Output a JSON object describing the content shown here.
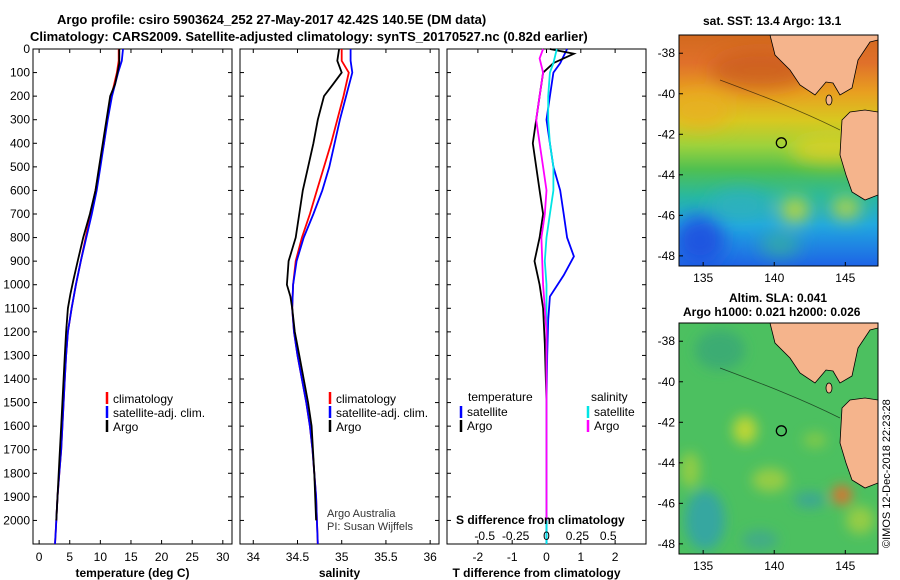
{
  "title": {
    "line1": "Argo profile: csiro 5903624_252 27-May-2017 42.42S 140.5E (DM data)",
    "line2": "Climatology: CARS2009. Satellite-adjusted climatology: synTS_20170527.nc (0.82d earlier)"
  },
  "credit": {
    "line1": "Argo Australia",
    "line2": "PI: Susan Wijffels"
  },
  "stamp": "©IMOS 12-Dec-2018 22:23:28",
  "colors": {
    "climatology": "#ff0000",
    "satellite": "#0000ff",
    "argo": "#000000",
    "sat_salinity": "#00e5e5",
    "argo_salinity": "#ff00ff"
  },
  "chart_data": [
    {
      "id": "temperature",
      "type": "line",
      "xlabel": "temperature (deg C)",
      "ylabel": "",
      "xlim": [
        -1,
        31.5
      ],
      "ylim": [
        2100,
        0
      ],
      "xticks": [
        0,
        5,
        10,
        15,
        20,
        25,
        30
      ],
      "yticks": [
        0,
        100,
        200,
        300,
        400,
        500,
        600,
        700,
        800,
        900,
        1000,
        1100,
        1200,
        1300,
        1400,
        1500,
        1600,
        1700,
        1800,
        1900,
        2000
      ],
      "legend": [
        "climatology",
        "satellite-adj. clim.",
        "Argo"
      ],
      "series": [
        {
          "name": "climatology",
          "color": "#ff0000",
          "x": [
            13.0,
            13.0,
            12.7,
            11.8,
            11.1,
            10.6,
            9.9,
            9.2,
            8.4,
            7.6,
            6.8,
            6.0,
            5.3,
            4.7,
            4.4,
            4.2,
            4.0,
            3.8,
            3.6,
            3.3,
            3.0,
            2.8,
            2.7,
            2.6
          ],
          "y": [
            0,
            50,
            100,
            200,
            300,
            400,
            500,
            600,
            700,
            800,
            900,
            1000,
            1100,
            1200,
            1300,
            1400,
            1500,
            1600,
            1700,
            1800,
            1900,
            2000,
            2050,
            2100
          ]
        },
        {
          "name": "satellite-adj. clim.",
          "color": "#0000ff",
          "x": [
            13.7,
            13.5,
            12.9,
            11.9,
            11.2,
            10.6,
            10.0,
            9.4,
            8.6,
            7.7,
            6.8,
            6.0,
            5.3,
            4.7,
            4.4,
            4.2,
            4.0,
            3.8,
            3.6,
            3.3,
            3.0,
            2.8,
            2.7,
            2.6
          ],
          "y": [
            0,
            50,
            100,
            200,
            300,
            400,
            500,
            600,
            700,
            800,
            900,
            1000,
            1100,
            1200,
            1300,
            1400,
            1500,
            1600,
            1700,
            1800,
            1900,
            2000,
            2050,
            2100
          ]
        },
        {
          "name": "Argo",
          "color": "#000000",
          "x": [
            13.1,
            13.1,
            12.8,
            12.4,
            11.6,
            11.0,
            10.4,
            9.8,
            9.2,
            8.3,
            7.2,
            6.3,
            5.6,
            5.1,
            4.7,
            4.4,
            4.2,
            4.0,
            3.8,
            3.6,
            3.3,
            3.0,
            2.8
          ],
          "y": [
            0,
            60,
            100,
            150,
            200,
            300,
            400,
            500,
            600,
            700,
            800,
            900,
            980,
            1040,
            1100,
            1200,
            1300,
            1400,
            1500,
            1600,
            1750,
            1900,
            2000
          ]
        }
      ]
    },
    {
      "id": "salinity",
      "type": "line",
      "xlabel": "salinity",
      "ylabel": "",
      "xlim": [
        33.85,
        36.1
      ],
      "ylim": [
        2100,
        0
      ],
      "xticks": [
        34,
        34.5,
        35,
        35.5,
        36
      ],
      "yticks": [
        0,
        100,
        200,
        300,
        400,
        500,
        600,
        700,
        800,
        900,
        1000,
        1100,
        1200,
        1300,
        1400,
        1500,
        1600,
        1700,
        1800,
        1900,
        2000
      ],
      "legend": [
        "climatology",
        "satellite-adj. clim.",
        "Argo"
      ],
      "series": [
        {
          "name": "climatology",
          "color": "#ff0000",
          "x": [
            35.0,
            35.0,
            35.08,
            35.02,
            34.95,
            34.88,
            34.8,
            34.72,
            34.64,
            34.55,
            34.48,
            34.45,
            34.44,
            34.46,
            34.5,
            34.55,
            34.6,
            34.64,
            34.67,
            34.69,
            34.71,
            34.72,
            34.73
          ],
          "y": [
            0,
            50,
            100,
            200,
            300,
            400,
            500,
            600,
            700,
            800,
            900,
            1000,
            1100,
            1200,
            1300,
            1400,
            1500,
            1600,
            1700,
            1800,
            1900,
            2000,
            2100
          ]
        },
        {
          "name": "satellite-adj. clim.",
          "color": "#0000ff",
          "x": [
            35.1,
            35.1,
            35.12,
            35.05,
            34.98,
            34.92,
            34.86,
            34.78,
            34.68,
            34.57,
            34.49,
            34.45,
            34.44,
            34.46,
            34.5,
            34.55,
            34.6,
            34.64,
            34.67,
            34.69,
            34.71,
            34.72,
            34.73
          ],
          "y": [
            0,
            50,
            100,
            200,
            300,
            400,
            500,
            600,
            700,
            800,
            900,
            1000,
            1100,
            1200,
            1300,
            1400,
            1500,
            1600,
            1700,
            1800,
            1900,
            2000,
            2100
          ]
        },
        {
          "name": "Argo",
          "color": "#000000",
          "x": [
            34.97,
            34.95,
            35.0,
            34.9,
            34.8,
            34.73,
            34.68,
            34.62,
            34.56,
            34.48,
            34.4,
            34.38,
            34.42,
            34.44,
            34.47,
            34.52,
            34.57,
            34.62,
            34.66,
            34.69,
            34.71
          ],
          "y": [
            0,
            50,
            100,
            150,
            200,
            300,
            400,
            500,
            600,
            800,
            900,
            1000,
            1050,
            1100,
            1200,
            1300,
            1400,
            1500,
            1600,
            1800,
            2000
          ]
        }
      ]
    },
    {
      "id": "difference",
      "type": "line",
      "xlabel": "T difference from climatology",
      "ylabel": "",
      "secondary_xlabel": "S difference from climatology",
      "xlim": [
        -2.9,
        2.9
      ],
      "ylim": [
        2100,
        0
      ],
      "xticks": [
        -2,
        -1,
        0,
        1,
        2
      ],
      "secondary_xticks": [
        "-0.5",
        "-0.25",
        "0",
        "0.25",
        "0.5"
      ],
      "yticks": [
        0,
        100,
        200,
        300,
        400,
        500,
        600,
        700,
        800,
        900,
        1000,
        1100,
        1200,
        1300,
        1400,
        1500,
        1600,
        1700,
        1800,
        1900,
        2000
      ],
      "legend_temperature": {
        "title": "temperature",
        "items": [
          "satellite",
          "Argo"
        ]
      },
      "legend_salinity": {
        "title": "salinity",
        "items": [
          "satellite",
          "Argo"
        ]
      },
      "series": [
        {
          "name": "temperature satellite",
          "color": "#0000ff",
          "x": [
            0.6,
            0.4,
            0.2,
            0.1,
            0.0,
            0.1,
            0.2,
            0.4,
            0.5,
            0.6,
            0.8,
            0.5,
            0.1,
            0.05,
            0.02,
            0.0,
            0.0,
            0.0,
            0.0,
            0.0
          ],
          "y": [
            0,
            60,
            100,
            200,
            300,
            400,
            500,
            600,
            700,
            800,
            880,
            960,
            1050,
            1150,
            1300,
            1500,
            1700,
            1900,
            2000,
            2100
          ]
        },
        {
          "name": "temperature Argo",
          "color": "#000000",
          "x": [
            0.1,
            0.8,
            0.2,
            -0.1,
            -0.2,
            -0.3,
            -0.4,
            -0.3,
            -0.2,
            -0.1,
            -0.2,
            -0.35,
            -0.2,
            -0.1,
            -0.05,
            0.0,
            0.0,
            0.0
          ],
          "y": [
            0,
            20,
            60,
            100,
            200,
            300,
            400,
            500,
            600,
            700,
            800,
            900,
            1000,
            1100,
            1250,
            1500,
            1800,
            2000
          ]
        },
        {
          "name": "salinity satellite",
          "color": "#00e5e5",
          "x": [
            0.3,
            0.2,
            0.1,
            0.05,
            0.05,
            0.1,
            0.2,
            0.2,
            0.1,
            0.0,
            -0.05,
            0.0,
            0.0,
            0.0,
            0.0
          ],
          "y": [
            0,
            60,
            100,
            200,
            300,
            400,
            500,
            600,
            700,
            800,
            900,
            1000,
            1300,
            1700,
            2100
          ]
        },
        {
          "name": "salinity Argo",
          "color": "#ff00ff",
          "x": [
            -0.1,
            -0.2,
            -0.1,
            -0.2,
            -0.3,
            -0.2,
            -0.1,
            0.0,
            -0.05,
            -0.15,
            -0.1,
            0.0,
            0.0,
            0.0
          ],
          "y": [
            0,
            40,
            100,
            200,
            300,
            400,
            500,
            600,
            700,
            800,
            1000,
            1200,
            1500,
            2000
          ]
        }
      ]
    },
    {
      "id": "sst_map",
      "type": "heatmap",
      "title": "sat. SST: 13.4 Argo: 13.1",
      "xlim": [
        133.3,
        147.3
      ],
      "ylim": [
        -48.5,
        -37.1
      ],
      "xticks": [
        135,
        140,
        145
      ],
      "yticks": [
        -38,
        -40,
        -42,
        -44,
        -46,
        -48
      ],
      "argo_position": {
        "lon": 140.5,
        "lat": -42.42
      }
    },
    {
      "id": "sla_map",
      "type": "heatmap",
      "title_line1": "Altim. SLA: 0.041",
      "title_line2": "Argo h1000: 0.021 h2000: 0.026",
      "xlim": [
        133.3,
        147.3
      ],
      "ylim": [
        -48.5,
        -37.1
      ],
      "xticks": [
        135,
        140,
        145
      ],
      "yticks": [
        -38,
        -40,
        -42,
        -44,
        -46,
        -48
      ],
      "argo_position": {
        "lon": 140.5,
        "lat": -42.42
      }
    }
  ]
}
